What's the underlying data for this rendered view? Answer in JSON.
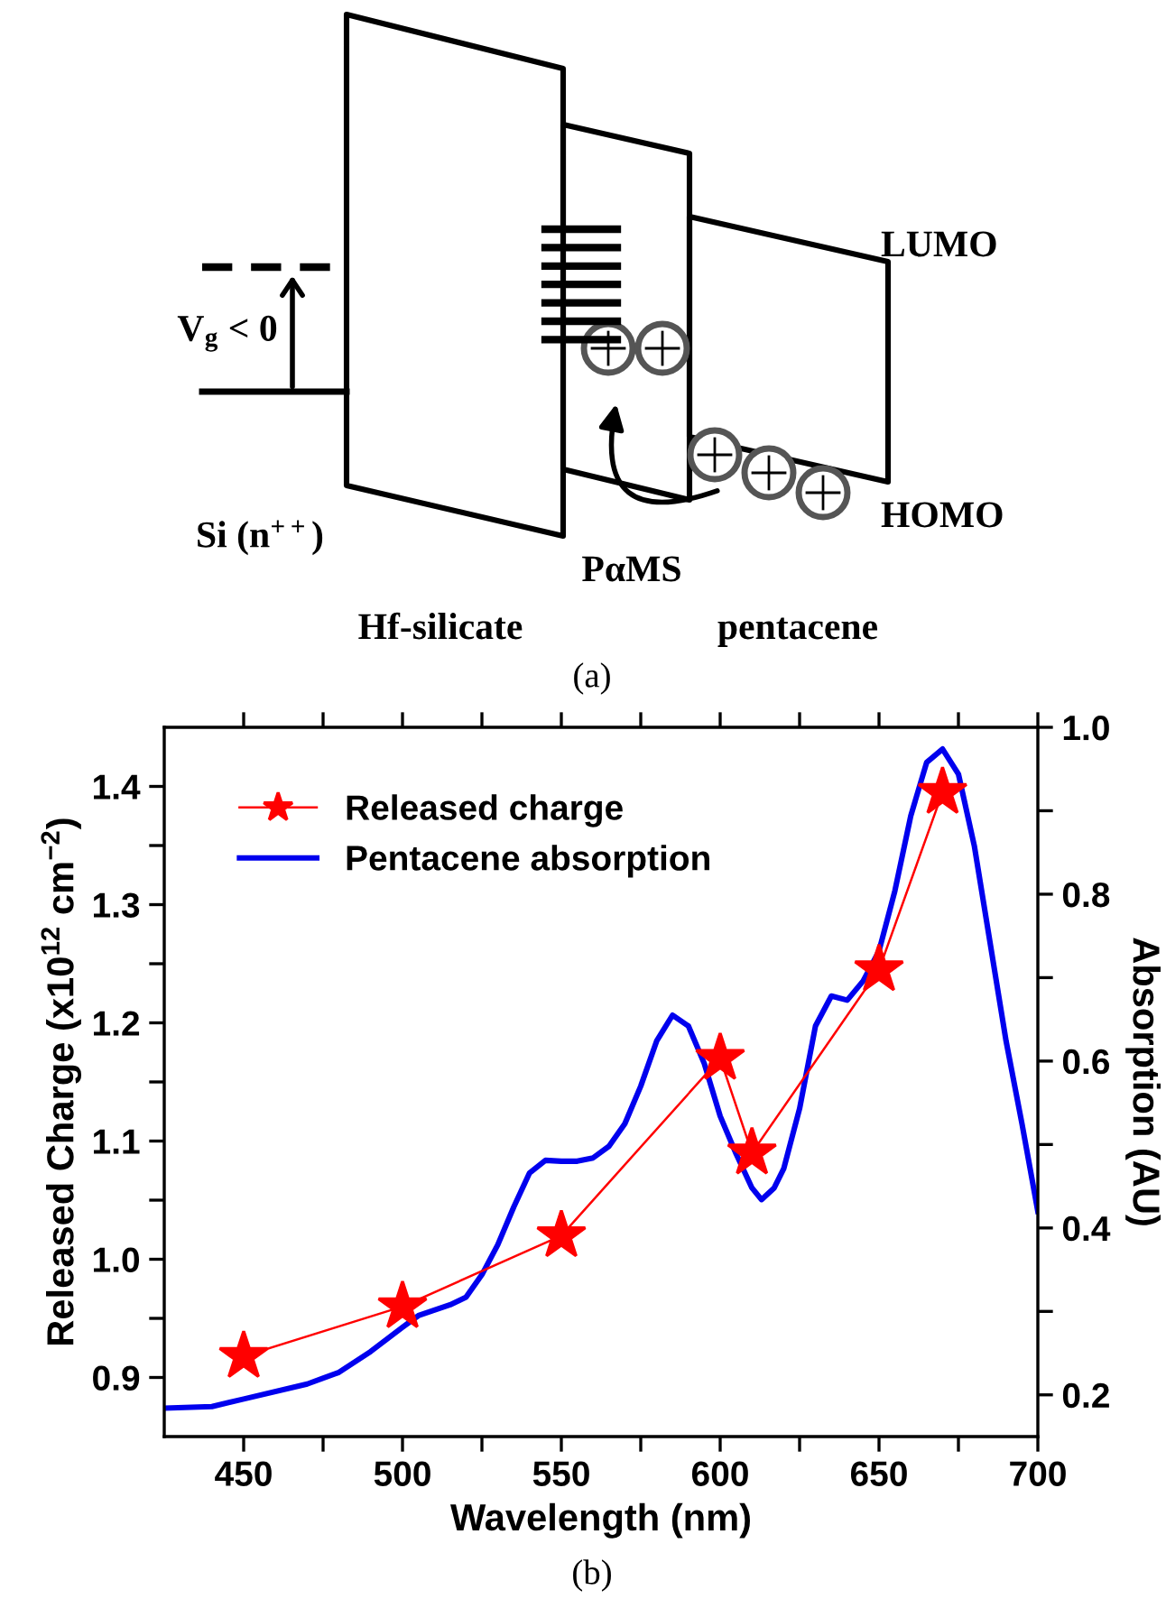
{
  "chart_data": [
    {
      "type": "other",
      "title": "(a)",
      "annotations": [
        "V$_{g}$ < 0",
        "Si (n$^{++}$)",
        "Hf-silicate",
        "PαMS",
        "pentacene",
        "LUMO",
        "HOMO"
      ]
    },
    {
      "type": "line",
      "title": "(b)",
      "xlabel": "Wavelength (nm)",
      "ylabel": "Released Charge (x10$^{12}$ cm$^{−2}$)",
      "y2label": "Absorption (AU)",
      "xlim": [
        425,
        700
      ],
      "xticks": [
        450,
        500,
        550,
        600,
        650,
        700,
        {
          "value": 475,
          "label": null
        },
        {
          "value": 525,
          "label": null
        },
        {
          "value": 575,
          "label": null
        },
        {
          "value": 625,
          "label": null
        },
        {
          "value": 675,
          "label": null
        }
      ],
      "ylim": [
        0.85,
        1.45
      ],
      "yticks": [
        {
          "value": 0.9,
          "label": "0.9"
        },
        {
          "value": 1.0,
          "label": "1.0"
        },
        {
          "value": 1.1,
          "label": "1.1"
        },
        {
          "value": 1.2,
          "label": "1.2"
        },
        {
          "value": 1.3,
          "label": "1.3"
        },
        {
          "value": 1.4,
          "label": "1.4"
        },
        {
          "value": 0.95,
          "label": null
        },
        {
          "value": 1.05,
          "label": null
        },
        {
          "value": 1.15,
          "label": null
        },
        {
          "value": 1.25,
          "label": null
        },
        {
          "value": 1.35,
          "label": null
        }
      ],
      "y2lim": [
        0.15,
        1.0
      ],
      "y2ticks": [
        {
          "value": 0.2,
          "label": "0.2"
        },
        {
          "value": 0.4,
          "label": "0.4"
        },
        {
          "value": 0.6,
          "label": "0.6"
        },
        {
          "value": 0.8,
          "label": "0.8"
        },
        {
          "value": 1.0,
          "label": "1.0"
        },
        {
          "value": 0.3,
          "label": null
        },
        {
          "value": 0.5,
          "label": null
        },
        {
          "value": 0.7,
          "label": null
        },
        {
          "value": 0.9,
          "label": null
        }
      ],
      "legend": "top left",
      "grid": false,
      "series": [
        {
          "name": "Released charge",
          "color": "#ff0000",
          "marker": "star",
          "line_style": "solid",
          "x": [
            450,
            500,
            550,
            600,
            610,
            650,
            670
          ],
          "values": [
            0.918,
            0.96,
            1.02,
            1.17,
            1.09,
            1.245,
            1.395
          ]
        },
        {
          "name": "Pentacene absorption",
          "color": "#0000ee",
          "marker": "none",
          "line_style": "solid",
          "axis": "y2",
          "x": [
            425,
            440,
            450,
            470,
            480,
            490,
            500,
            505,
            515,
            520,
            525,
            530,
            535,
            540,
            545,
            550,
            555,
            560,
            565,
            570,
            575,
            580,
            585,
            590,
            595,
            600,
            605,
            610,
            613,
            617,
            620,
            625,
            630,
            635,
            640,
            645,
            650,
            655,
            660,
            665,
            670,
            675,
            680,
            685,
            690,
            695,
            700
          ],
          "values": [
            0.184,
            0.186,
            0.195,
            0.213,
            0.227,
            0.252,
            0.281,
            0.295,
            0.308,
            0.317,
            0.344,
            0.38,
            0.425,
            0.466,
            0.481,
            0.48,
            0.48,
            0.484,
            0.498,
            0.525,
            0.57,
            0.624,
            0.655,
            0.642,
            0.597,
            0.534,
            0.489,
            0.448,
            0.434,
            0.448,
            0.471,
            0.543,
            0.642,
            0.678,
            0.673,
            0.696,
            0.732,
            0.804,
            0.894,
            0.958,
            0.974,
            0.944,
            0.858,
            0.741,
            0.624,
            0.525,
            0.42
          ]
        }
      ]
    }
  ]
}
